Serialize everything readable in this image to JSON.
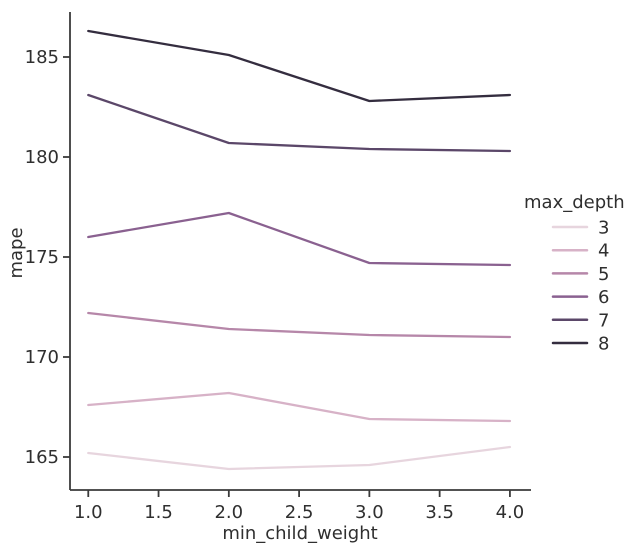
{
  "colors": {
    "background": "#ffffff",
    "text": "#2f2f2f",
    "axis": "#3a3a3a"
  },
  "chart_data": {
    "type": "line",
    "title": "",
    "xlabel": "min_child_weight",
    "ylabel": "mape",
    "x": [
      1.0,
      2.0,
      3.0,
      4.0
    ],
    "xlim": [
      0.87,
      4.15
    ],
    "ylim": [
      163.35,
      187.25
    ],
    "x_ticks": [
      1.0,
      1.5,
      2.0,
      2.5,
      3.0,
      3.5,
      4.0
    ],
    "x_tick_labels": [
      "1.0",
      "1.5",
      "2.0",
      "2.5",
      "3.0",
      "3.5",
      "4.0"
    ],
    "y_ticks": [
      165,
      170,
      175,
      180,
      185
    ],
    "y_tick_labels": [
      "165",
      "170",
      "175",
      "180",
      "185"
    ],
    "grid": false,
    "legend": {
      "title": "max_depth",
      "position": "right"
    },
    "series": [
      {
        "name": "3",
        "color": "#e7d5de",
        "values": [
          165.2,
          164.4,
          164.6,
          165.5
        ]
      },
      {
        "name": "4",
        "color": "#d7b2c7",
        "values": [
          167.6,
          168.2,
          166.9,
          166.8
        ]
      },
      {
        "name": "5",
        "color": "#b687a9",
        "values": [
          172.2,
          171.4,
          171.1,
          171.0
        ]
      },
      {
        "name": "6",
        "color": "#8a6190",
        "values": [
          176.0,
          177.2,
          174.7,
          174.6
        ]
      },
      {
        "name": "7",
        "color": "#5b4769",
        "values": [
          183.1,
          180.7,
          180.4,
          180.3
        ]
      },
      {
        "name": "8",
        "color": "#342d3f",
        "values": [
          186.3,
          185.1,
          182.8,
          183.1
        ]
      }
    ]
  }
}
